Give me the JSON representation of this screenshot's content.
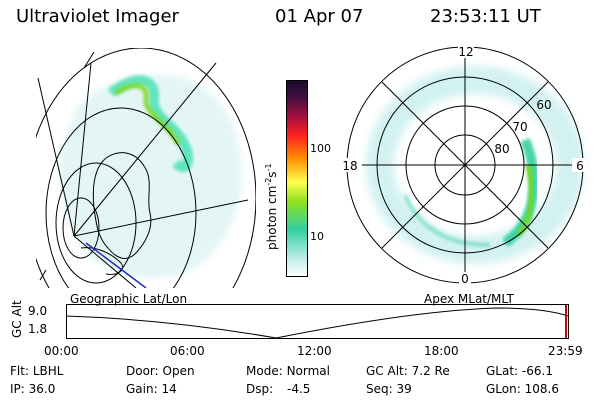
{
  "header": {
    "instrument": "Ultraviolet Imager",
    "date": "01 Apr 07",
    "time": "23:53:11 UT"
  },
  "colorbar": {
    "label": "photon cm",
    "label_sup1": "-2",
    "label_mid": "s",
    "label_sup2": "-1",
    "ticks": [
      "100",
      "10"
    ]
  },
  "polar_plot": {
    "mlt_labels": [
      "12",
      "18",
      "6",
      "0"
    ],
    "lat_labels": [
      "60",
      "70",
      "80"
    ]
  },
  "timeline": {
    "left_title": "Geographic Lat/Lon",
    "right_title": "Apex MLat/MLT",
    "y_label": "GC Alt",
    "y_max": "9.0",
    "y_min": "1.8",
    "x_ticks": [
      "00:00",
      "06:00",
      "12:00",
      "18:00",
      "23:59"
    ]
  },
  "footer": {
    "row1": [
      {
        "label": "Flt:",
        "value": "LBHL"
      },
      {
        "label": "Door:",
        "value": "Open"
      },
      {
        "label": "Mode:",
        "value": "Normal"
      },
      {
        "label": "GC Alt:",
        "value": "7.2 Re"
      },
      {
        "label": "GLat:",
        "value": "-66.1"
      }
    ],
    "row2": [
      {
        "label": "IP:",
        "value": "36.0"
      },
      {
        "label": "Gain:",
        "value": "14"
      },
      {
        "label": "Dsp:",
        "value": "-4.5"
      },
      {
        "label": "Seq:",
        "value": "39"
      },
      {
        "label": "GLon:",
        "value": "108.6"
      }
    ]
  },
  "colors": {
    "aurora_low": "#b9e6e6",
    "aurora_mid": "#40e0b0",
    "aurora_high": "#6cd820",
    "marker": "#cc0000"
  }
}
